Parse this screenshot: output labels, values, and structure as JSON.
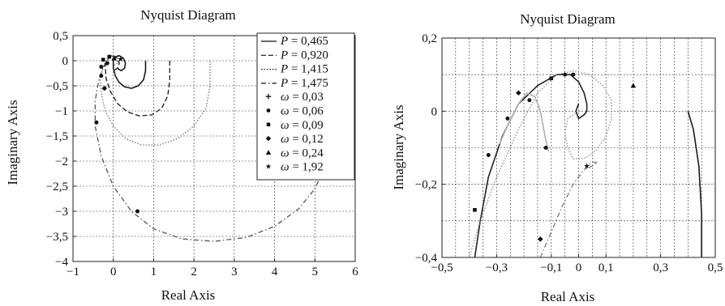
{
  "chart_data": [
    {
      "type": "line",
      "title": "Nyquist Diagram",
      "xlabel": "Real Axis",
      "ylabel": "Imaginary Axis",
      "xlim": [
        -1,
        6
      ],
      "ylim": [
        -4,
        0.5
      ],
      "xticks": [
        "−1",
        "0",
        "1",
        "2",
        "3",
        "4",
        "5",
        "6"
      ],
      "xtick_values": [
        -1,
        0,
        1,
        2,
        3,
        4,
        5,
        6
      ],
      "yticks": [
        "0,5",
        "0",
        "−0,5",
        "−1",
        "−1,5",
        "−2",
        "−2,5",
        "−3",
        "−3,5",
        "−4"
      ],
      "ytick_values": [
        0.5,
        0,
        -0.5,
        -1,
        -1.5,
        -2,
        -2.5,
        -3,
        -3.5,
        -4
      ],
      "grid": true,
      "legend_position": "top-right",
      "legend": {
        "lines": [
          {
            "prefix": "P",
            "text": " = 0,465"
          },
          {
            "prefix": "P",
            "text": " = 0,920"
          },
          {
            "prefix": "P",
            "text": " = 1,415"
          },
          {
            "prefix": "P",
            "text": " = 1,475"
          }
        ],
        "markers": [
          {
            "marker": "plus",
            "prefix": "ω",
            "text": " = 0,03"
          },
          {
            "marker": "circle",
            "prefix": "ω",
            "text": " = 0,06"
          },
          {
            "marker": "square",
            "prefix": "ω",
            "text": " = 0,09"
          },
          {
            "marker": "diamond",
            "prefix": "ω",
            "text": " = 0,12"
          },
          {
            "marker": "triangle",
            "prefix": "ω",
            "text": " = 0,24"
          },
          {
            "marker": "star",
            "prefix": "ω",
            "text": " = 1,92"
          }
        ]
      },
      "series": [
        {
          "name": "P = 0,465",
          "style": "solid",
          "color": "#1a1a1a",
          "x": [
            0.8,
            0.8,
            0.75,
            0.62,
            0.45,
            0.28,
            0.14,
            0.05,
            0.0,
            0.0,
            0.05,
            0.15,
            0.25,
            0.3,
            0.28,
            0.2,
            0.1
          ],
          "y": [
            0.0,
            -0.2,
            -0.38,
            -0.5,
            -0.55,
            -0.52,
            -0.43,
            -0.3,
            -0.15,
            0.0,
            0.08,
            0.1,
            0.05,
            -0.05,
            -0.15,
            -0.2,
            -0.15
          ]
        },
        {
          "name": "P = 0,920",
          "style": "dash",
          "color": "#1a1a1a",
          "x": [
            1.4,
            1.4,
            1.35,
            1.2,
            0.95,
            0.65,
            0.35,
            0.1,
            -0.08,
            -0.18,
            -0.2,
            -0.12,
            0.0,
            0.1,
            0.15,
            0.1,
            0.0
          ],
          "y": [
            0.0,
            -0.4,
            -0.7,
            -0.95,
            -1.08,
            -1.1,
            -1.02,
            -0.85,
            -0.6,
            -0.35,
            -0.1,
            0.05,
            0.1,
            0.05,
            -0.05,
            -0.15,
            -0.2
          ]
        },
        {
          "name": "P = 1,415",
          "style": "dot",
          "color": "#777777",
          "x": [
            2.4,
            2.4,
            2.3,
            2.0,
            1.6,
            1.15,
            0.7,
            0.3,
            0.0,
            -0.2,
            -0.3,
            -0.32,
            -0.25,
            -0.12,
            0.0,
            0.1,
            0.1,
            0.0
          ],
          "y": [
            0.0,
            -0.5,
            -0.95,
            -1.3,
            -1.55,
            -1.68,
            -1.68,
            -1.55,
            -1.3,
            -1.0,
            -0.65,
            -0.35,
            -0.1,
            0.05,
            0.1,
            0.05,
            -0.05,
            -0.1
          ]
        },
        {
          "name": "P = 1,475",
          "style": "dashdot",
          "color": "#555555",
          "x": [
            5.2,
            5.0,
            4.6,
            4.0,
            3.3,
            2.5,
            1.7,
            1.0,
            0.45,
            0.0,
            -0.3,
            -0.45,
            -0.45,
            -0.35,
            -0.2,
            -0.05,
            0.05,
            0.0
          ],
          "y": [
            -2.2,
            -2.55,
            -2.95,
            -3.3,
            -3.52,
            -3.6,
            -3.55,
            -3.35,
            -3.0,
            -2.5,
            -1.9,
            -1.3,
            -0.8,
            -0.35,
            -0.05,
            0.1,
            0.05,
            0.0
          ]
        }
      ],
      "markers": [
        {
          "x": 0.6,
          "y": -3.0,
          "marker": "circle"
        },
        {
          "x": -0.42,
          "y": -1.23,
          "marker": "circle"
        },
        {
          "x": -0.22,
          "y": -0.55,
          "marker": "diamond"
        },
        {
          "x": -0.3,
          "y": -0.12,
          "marker": "circle"
        },
        {
          "x": -0.25,
          "y": 0.02,
          "marker": "square"
        },
        {
          "x": -0.1,
          "y": 0.08,
          "marker": "square"
        },
        {
          "x": 0.02,
          "y": 0.05,
          "marker": "triangle"
        },
        {
          "x": 0.18,
          "y": 0.03,
          "marker": "star"
        },
        {
          "x": -0.3,
          "y": -0.3,
          "marker": "circle"
        },
        {
          "x": -0.15,
          "y": -0.05,
          "marker": "circle"
        }
      ]
    },
    {
      "type": "line",
      "title": "Nyquist Diagram",
      "xlabel": "Real Axis",
      "ylabel": "Imaginary Axis",
      "xlim": [
        -0.5,
        0.5
      ],
      "ylim": [
        -0.4,
        0.2
      ],
      "xticks": [
        "−0,5",
        "−0,3",
        "−0,1",
        "0",
        "0,1",
        "0,3",
        "0,5"
      ],
      "xtick_values": [
        -0.5,
        -0.3,
        -0.1,
        0,
        0.1,
        0.3,
        0.5
      ],
      "xgrid_values": [
        -0.5,
        -0.45,
        -0.4,
        -0.35,
        -0.3,
        -0.25,
        -0.2,
        -0.15,
        -0.1,
        -0.05,
        0,
        0.05,
        0.1,
        0.15,
        0.2,
        0.25,
        0.3,
        0.35,
        0.4,
        0.45,
        0.5
      ],
      "yticks": [
        "0,2",
        "0",
        "−0,2",
        "−0,4"
      ],
      "ytick_values": [
        0.2,
        0,
        -0.2,
        -0.4
      ],
      "ygrid_values": [
        0.2,
        0.1,
        0,
        -0.1,
        -0.2,
        -0.3,
        -0.4
      ],
      "grid": true,
      "series": [
        {
          "name": "P = 0,465",
          "style": "solid",
          "color": "#1a1a1a",
          "x": [
            0.4,
            0.42,
            0.44,
            0.45,
            0.45
          ],
          "y": [
            0.0,
            -0.05,
            -0.15,
            -0.28,
            -0.4
          ]
        },
        {
          "name": "P = 0,920",
          "style": "solid",
          "color": "#222222",
          "x": [
            -0.38,
            -0.36,
            -0.33,
            -0.28,
            -0.22,
            -0.15,
            -0.08,
            -0.03,
            0.0,
            0.02,
            0.03,
            0.03,
            0.02,
            0.0,
            -0.01,
            0.0
          ],
          "y": [
            -0.4,
            -0.3,
            -0.18,
            -0.07,
            0.02,
            0.07,
            0.1,
            0.1,
            0.08,
            0.05,
            0.02,
            0.0,
            -0.01,
            -0.02,
            0.0,
            0.02
          ]
        },
        {
          "name": "P = 1,415",
          "style": "dot",
          "color": "#8a8a8a",
          "x": [
            -0.4,
            -0.36,
            -0.3,
            -0.22,
            -0.15,
            -0.08,
            -0.02,
            0.04,
            0.09,
            0.12,
            0.12,
            0.1,
            0.06,
            0.02,
            -0.02,
            -0.04,
            -0.05,
            -0.04,
            0.0,
            0.03
          ],
          "y": [
            -0.4,
            -0.3,
            -0.18,
            -0.05,
            0.05,
            0.1,
            0.11,
            0.1,
            0.07,
            0.03,
            -0.02,
            -0.07,
            -0.11,
            -0.13,
            -0.13,
            -0.1,
            -0.06,
            -0.02,
            0.0,
            0.0
          ]
        },
        {
          "name": "P = 1,475",
          "style": "dashdot",
          "color": "#7a7a7a",
          "x": [
            -0.14,
            -0.1,
            -0.06,
            -0.02,
            0.02,
            0.05,
            0.07,
            0.05,
            0.02
          ],
          "y": [
            -0.4,
            -0.33,
            -0.26,
            -0.2,
            -0.16,
            -0.14,
            -0.14,
            -0.15,
            -0.16
          ]
        },
        {
          "name": "P = 1,475",
          "style": "solid",
          "color": "#b0b0b0",
          "x": [
            -0.29,
            -0.26,
            -0.22,
            -0.19,
            -0.16,
            -0.14,
            -0.13,
            -0.12,
            -0.11
          ],
          "y": [
            -0.09,
            -0.04,
            0.02,
            0.05,
            0.04,
            0.0,
            -0.04,
            -0.08,
            -0.11
          ]
        }
      ],
      "markers": [
        {
          "x": -0.38,
          "y": -0.27,
          "marker": "square"
        },
        {
          "x": -0.33,
          "y": -0.12,
          "marker": "circle"
        },
        {
          "x": -0.26,
          "y": -0.02,
          "marker": "circle"
        },
        {
          "x": -0.22,
          "y": 0.05,
          "marker": "diamond"
        },
        {
          "x": -0.18,
          "y": 0.03,
          "marker": "circle"
        },
        {
          "x": -0.1,
          "y": 0.09,
          "marker": "square"
        },
        {
          "x": -0.05,
          "y": 0.1,
          "marker": "circle"
        },
        {
          "x": -0.02,
          "y": 0.1,
          "marker": "circle"
        },
        {
          "x": -0.14,
          "y": -0.35,
          "marker": "diamond"
        },
        {
          "x": 0.2,
          "y": 0.07,
          "marker": "triangle"
        },
        {
          "x": -0.12,
          "y": -0.1,
          "marker": "circle"
        },
        {
          "x": 0.03,
          "y": -0.15,
          "marker": "star"
        }
      ]
    }
  ]
}
